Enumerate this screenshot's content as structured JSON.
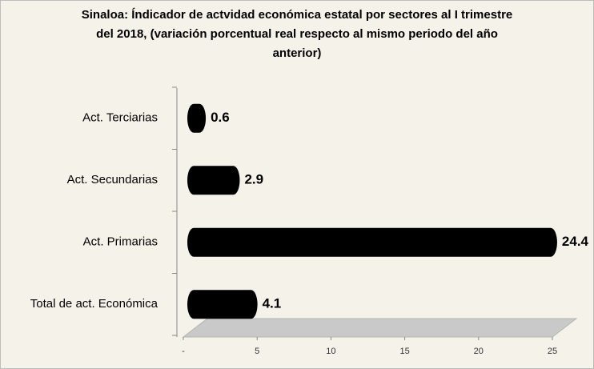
{
  "chart_data": {
    "type": "bar",
    "orientation": "horizontal",
    "title": [
      "Sinaloa: Índicador de actvidad económica  estatal por sectores al I trimestre",
      "del 2018, (variación  porcentual real respecto al mismo periodo del año",
      "anterior)"
    ],
    "categories": [
      "Act. Terciarias",
      "Act. Secundarias",
      "Act. Primarias",
      "Total de act. Económica"
    ],
    "values": [
      0.6,
      2.9,
      24.4,
      4.1
    ],
    "color": "#000000",
    "xlim": [
      0,
      25
    ],
    "xticks": [
      {
        "value": 0,
        "label": "-"
      },
      5,
      10,
      15,
      20,
      25
    ],
    "grid": false
  }
}
